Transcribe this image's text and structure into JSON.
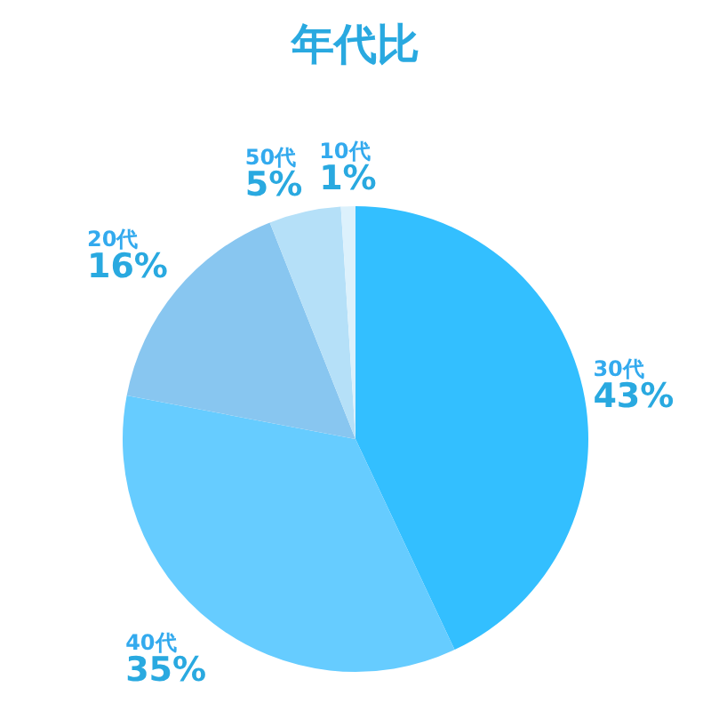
{
  "chart_data": {
    "type": "pie",
    "title": "年代比",
    "categories": [
      "30代",
      "40代",
      "20代",
      "50代",
      "10代"
    ],
    "values": [
      43,
      35,
      16,
      5,
      1
    ],
    "value_labels": [
      "43%",
      "35%",
      "16%",
      "5%",
      "1%"
    ],
    "colors": [
      "#33bfff",
      "#66ccff",
      "#88c6f0",
      "#b5e0f8",
      "#dcf1fc"
    ],
    "legend": false
  }
}
